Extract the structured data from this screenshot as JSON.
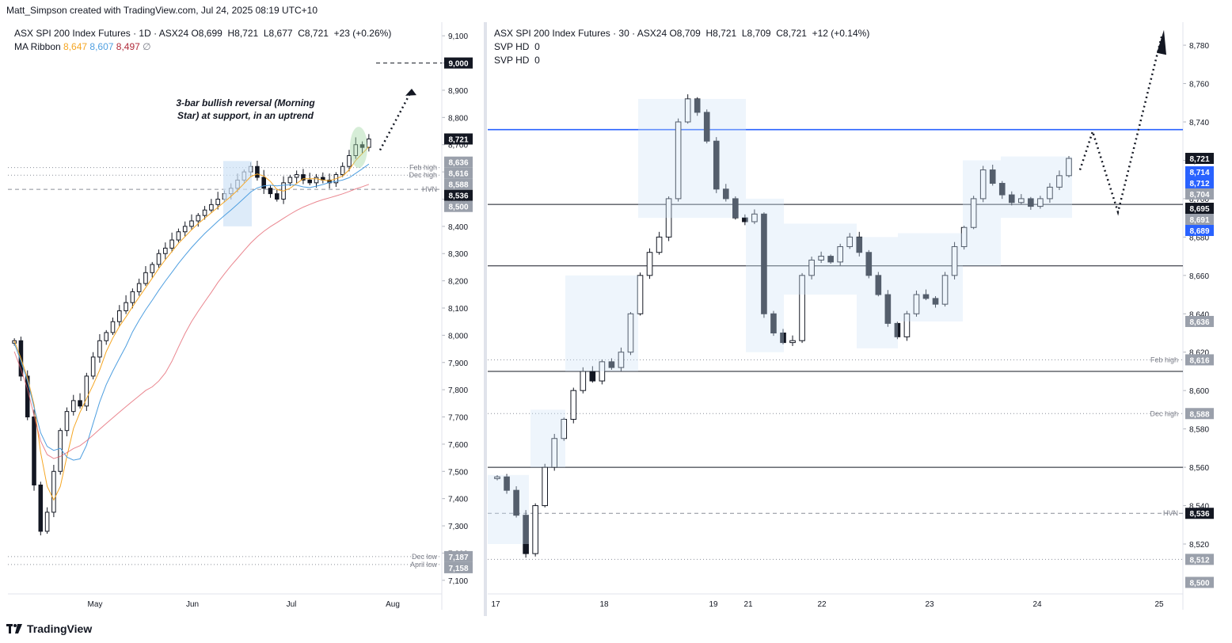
{
  "header": {
    "text": "Matt_Simpson created with TradingView.com, Jul 24, 2025 08:19 UTC+10"
  },
  "footer": {
    "brand": "TradingView"
  },
  "colors": {
    "up": "#131722",
    "ma_fast": "#f5a623",
    "ma_mid": "#4f9fe0",
    "ma_slow": "#e35d6a",
    "hd_fill": "#cfe2f7",
    "hd_bar": "#2f6fe0",
    "level": "#2962ff",
    "badge_dark": "#131722",
    "badge_grey": "#9aa0ab",
    "badge_blue": "#2962ff"
  },
  "left": {
    "title": "ASX SPI 200 Index Futures · 1D · ASX24",
    "ohlc": "O8,699  H8,721  L8,677  C8,721  +23 (+0.26%)",
    "ma_label": "MA Ribbon",
    "ma_fast": "8,647",
    "ma_mid": "8,607",
    "ma_slow": "8,497",
    "ma_null": "∅",
    "annotation_line1": "3-bar bullish reversal (Morning",
    "annotation_line2": "Star) at support, in an uptrend",
    "level_labels": {
      "feb_high": "Feb high",
      "dec_high": "Dec high",
      "hvn": "HVN",
      "dec_low": "Dec low",
      "april_low": "April low"
    },
    "badges": [
      "9,000",
      "8,721",
      "8,636",
      "8,616",
      "8,588",
      "8,536",
      "8,500",
      "7,187",
      "7,158"
    ]
  },
  "right": {
    "title": "ASX SPI 200 Index Futures · 30 · ASX24",
    "ohlc": "O8,709  H8,721  L8,709  C8,721  +12 (+0.14%)",
    "svp1": "SVP HD  0",
    "svp2": "SVP HD  0",
    "level_labels": {
      "feb_high": "Feb high",
      "dec_high": "Dec high",
      "hvn": "HVN"
    },
    "badges": [
      "8,721",
      "8,714",
      "8,712",
      "8,704",
      "8,695",
      "8,691",
      "8,689",
      "8,636",
      "8,616",
      "8,588",
      "8,536",
      "8,512",
      "8,500"
    ]
  },
  "chart_data": [
    {
      "type": "line",
      "title": "ASX SPI 200 Index Futures · 1D · ASX24",
      "ylim": [
        7050,
        9150
      ],
      "yticks": [
        9100,
        9000,
        8900,
        8800,
        8700,
        8600,
        8500,
        8400,
        8300,
        8200,
        8100,
        8000,
        7900,
        7800,
        7700,
        7600,
        7500,
        7400,
        7300,
        7200,
        7100
      ],
      "xticks": [
        "May",
        "Jun",
        "Jul",
        "Aug"
      ],
      "close": [
        7980,
        7850,
        7700,
        7450,
        7280,
        7350,
        7500,
        7650,
        7720,
        7760,
        7740,
        7850,
        7920,
        7980,
        8010,
        8050,
        8090,
        8120,
        8160,
        8190,
        8230,
        8260,
        8300,
        8320,
        8350,
        8380,
        8400,
        8420,
        8440,
        8460,
        8480,
        8500,
        8520,
        8540,
        8570,
        8600,
        8620,
        8580,
        8540,
        8520,
        8500,
        8560,
        8580,
        8590,
        8570,
        8560,
        8580,
        8570,
        8560,
        8590,
        8620,
        8660,
        8700,
        8690,
        8721
      ],
      "ma_ribbon": {
        "fast_last": 8647,
        "mid_last": 8607,
        "slow_last": 8497
      },
      "levels": [
        {
          "label": "Feb high",
          "value": 8616
        },
        {
          "label": "Dec high",
          "value": 8588
        },
        {
          "label": "HVN",
          "value": 8536
        },
        {
          "label": "Dec low",
          "value": 7187
        },
        {
          "label": "April low",
          "value": 7158
        }
      ]
    },
    {
      "type": "line",
      "title": "ASX SPI 200 Index Futures · 30 · ASX24",
      "ylim": [
        8494,
        8792
      ],
      "yticks": [
        8780,
        8760,
        8740,
        8720,
        8700,
        8680,
        8660,
        8640,
        8620,
        8600,
        8580,
        8560,
        8540,
        8520
      ],
      "xticks": [
        "17",
        "18",
        "19",
        "21",
        "22",
        "23",
        "24",
        "25"
      ],
      "close": [
        8555,
        8548,
        8535,
        8515,
        8540,
        8560,
        8575,
        8585,
        8600,
        8610,
        8605,
        8615,
        8612,
        8620,
        8640,
        8660,
        8672,
        8680,
        8700,
        8740,
        8752,
        8745,
        8730,
        8705,
        8700,
        8690,
        8688,
        8692,
        8640,
        8630,
        8625,
        8626,
        8660,
        8668,
        8670,
        8667,
        8675,
        8680,
        8672,
        8660,
        8650,
        8635,
        8628,
        8640,
        8650,
        8648,
        8645,
        8660,
        8675,
        8685,
        8700,
        8715,
        8708,
        8702,
        8698,
        8700,
        8696,
        8700,
        8706,
        8712,
        8721
      ],
      "levels": [
        {
          "label": "",
          "value": 8736
        },
        {
          "label": "",
          "value": 8697
        },
        {
          "label": "",
          "value": 8665
        },
        {
          "label": "Feb high",
          "value": 8616
        },
        {
          "label": "",
          "value": 8610
        },
        {
          "label": "Dec high",
          "value": 8588
        },
        {
          "label": "",
          "value": 8560
        },
        {
          "label": "HVN",
          "value": 8536
        },
        {
          "label": "",
          "value": 8512
        }
      ]
    }
  ]
}
